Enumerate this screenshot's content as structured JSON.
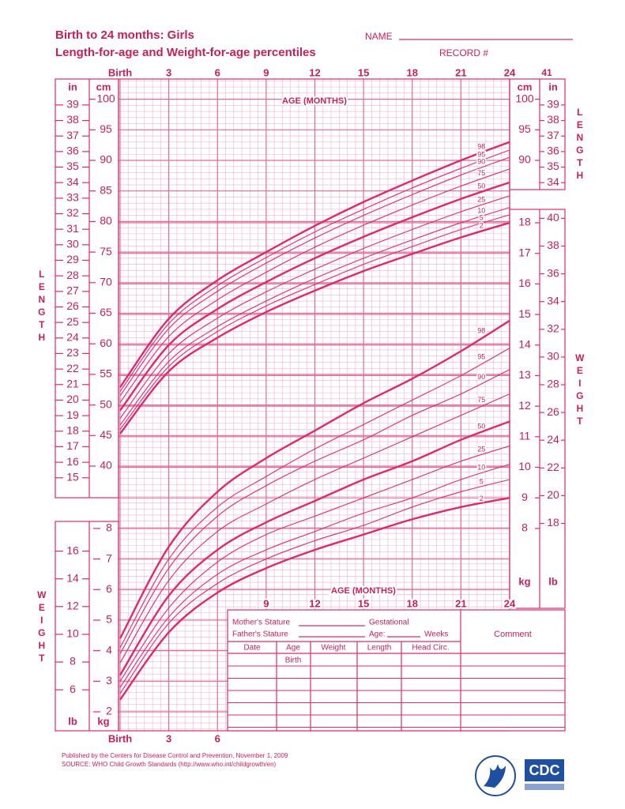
{
  "header": {
    "title": "Birth to 24 months: Girls",
    "subtitle": "Length-for-age and Weight-for-age percentiles",
    "name_label": "NAME",
    "record_label": "RECORD #",
    "corner_label": "41"
  },
  "chart_data": [
    {
      "type": "line",
      "x_label": "AGE (MONTHS)",
      "y_label": "LENGTH",
      "y_unit": "cm",
      "y2_unit": "in",
      "x": [
        0,
        3,
        6,
        9,
        12,
        15,
        18,
        21,
        24
      ],
      "xlim": [
        0,
        24
      ],
      "xticks": [
        {
          "value": 0,
          "label": "Birth"
        },
        3,
        6,
        9,
        12,
        15,
        18,
        21,
        24
      ],
      "ylim": [
        40,
        100
      ],
      "yticks": [
        40,
        45,
        50,
        55,
        60,
        65,
        70,
        75,
        80,
        85,
        90,
        95,
        100
      ],
      "yticks_right": [
        90,
        95,
        100
      ],
      "y2lim": [
        15.75,
        39.37
      ],
      "y2ticks": [
        15,
        16,
        17,
        18,
        19,
        20,
        21,
        22,
        23,
        24,
        25,
        26,
        27,
        28,
        29,
        30,
        31,
        32,
        33,
        34,
        35,
        36,
        37,
        38,
        39
      ],
      "y2ticks_right": [
        34,
        35,
        36,
        37,
        38,
        39
      ],
      "series": [
        {
          "name": "98",
          "color": "#dc2a72",
          "bold": true,
          "values": [
            52.9,
            64.1,
            70.4,
            75.0,
            79.3,
            83.2,
            86.7,
            90.0,
            93.0
          ]
        },
        {
          "name": "95",
          "color": "#dc2a72",
          "values": [
            52.2,
            63.3,
            69.5,
            74.1,
            78.3,
            82.0,
            85.5,
            88.7,
            91.7
          ]
        },
        {
          "name": "90",
          "color": "#dc2a72",
          "values": [
            51.5,
            62.5,
            68.6,
            73.2,
            77.3,
            81.0,
            84.4,
            87.6,
            90.5
          ]
        },
        {
          "name": "75",
          "color": "#dc2a72",
          "values": [
            50.4,
            61.2,
            67.2,
            71.7,
            75.8,
            79.4,
            82.7,
            85.8,
            88.6
          ]
        },
        {
          "name": "50",
          "color": "#dc2a72",
          "bold": true,
          "values": [
            49.1,
            59.8,
            65.7,
            70.1,
            74.0,
            77.5,
            80.7,
            83.7,
            86.4
          ]
        },
        {
          "name": "25",
          "color": "#dc2a72",
          "values": [
            47.8,
            58.4,
            64.2,
            68.5,
            72.2,
            75.6,
            78.7,
            81.6,
            84.2
          ]
        },
        {
          "name": "10",
          "color": "#dc2a72",
          "values": [
            46.7,
            57.1,
            62.8,
            67.0,
            70.7,
            74.0,
            77.0,
            79.8,
            82.3
          ]
        },
        {
          "name": "5",
          "color": "#dc2a72",
          "values": [
            46.0,
            56.3,
            62.0,
            66.2,
            69.7,
            73.0,
            75.9,
            78.7,
            81.1
          ]
        },
        {
          "name": "2",
          "color": "#dc2a72",
          "bold": true,
          "values": [
            45.3,
            55.5,
            61.0,
            65.2,
            68.7,
            71.9,
            74.7,
            77.4,
            79.8
          ]
        }
      ]
    },
    {
      "type": "line",
      "x_label": "AGE (MONTHS)",
      "y_label": "WEIGHT",
      "y_unit": "kg",
      "y2_unit": "lb",
      "x": [
        0,
        3,
        6,
        9,
        12,
        15,
        18,
        21,
        24
      ],
      "xlim": [
        0,
        24
      ],
      "xticks": [
        {
          "value": 0,
          "label": "Birth"
        },
        3,
        6,
        9,
        12,
        15,
        18,
        21,
        24
      ],
      "ylim": [
        2,
        18
      ],
      "yticks": [
        2,
        3,
        4,
        5,
        6,
        7,
        8
      ],
      "yticks_right": [
        8,
        9,
        10,
        11,
        12,
        13,
        14,
        15,
        16,
        17,
        18
      ],
      "y2lim": [
        4.41,
        39.68
      ],
      "y2ticks": [
        6,
        8,
        10,
        12,
        14,
        16
      ],
      "y2ticks_right": [
        18,
        20,
        22,
        24,
        26,
        28,
        30,
        32,
        34,
        36,
        38,
        40
      ],
      "series": [
        {
          "name": "98",
          "color": "#dc2a72",
          "bold": true,
          "values": [
            4.4,
            7.4,
            9.2,
            10.3,
            11.2,
            12.1,
            12.9,
            13.8,
            14.8
          ]
        },
        {
          "name": "95",
          "color": "#dc2a72",
          "values": [
            4.1,
            7.0,
            8.7,
            9.7,
            10.6,
            11.4,
            12.2,
            13.0,
            13.9
          ]
        },
        {
          "name": "90",
          "color": "#dc2a72",
          "values": [
            3.9,
            6.7,
            8.4,
            9.4,
            10.2,
            10.9,
            11.7,
            12.4,
            13.2
          ]
        },
        {
          "name": "75",
          "color": "#dc2a72",
          "values": [
            3.6,
            6.3,
            7.9,
            8.8,
            9.6,
            10.3,
            11.0,
            11.7,
            12.4
          ]
        },
        {
          "name": "50",
          "color": "#dc2a72",
          "bold": true,
          "values": [
            3.2,
            5.8,
            7.3,
            8.2,
            8.9,
            9.6,
            10.2,
            10.9,
            11.5
          ]
        },
        {
          "name": "25",
          "color": "#dc2a72",
          "values": [
            3.0,
            5.4,
            6.9,
            7.8,
            8.4,
            9.0,
            9.6,
            10.2,
            10.7
          ]
        },
        {
          "name": "10",
          "color": "#dc2a72",
          "values": [
            2.8,
            5.1,
            6.5,
            7.3,
            7.9,
            8.5,
            9.0,
            9.6,
            10.1
          ]
        },
        {
          "name": "5",
          "color": "#dc2a72",
          "values": [
            2.6,
            4.9,
            6.2,
            7.0,
            7.6,
            8.1,
            8.7,
            9.2,
            9.6
          ]
        },
        {
          "name": "2",
          "color": "#dc2a72",
          "bold": true,
          "values": [
            2.4,
            4.6,
            5.9,
            6.7,
            7.3,
            7.8,
            8.3,
            8.7,
            9.0
          ]
        }
      ]
    }
  ],
  "form": {
    "mothers_stature": "Mother's Stature",
    "fathers_stature": "Father's Stature",
    "gestational": "Gestational",
    "age": "Age:",
    "weeks": "Weeks",
    "comment": "Comment",
    "columns": [
      "Date",
      "Age",
      "Weight",
      "Length",
      "Head Circ."
    ],
    "first_age": "Birth"
  },
  "footer": {
    "published": "Published by the Centers for Disease Control and Prevention, November 1, 2009",
    "source": "SOURCE:  WHO Child Growth Standards (http://www.who.int/childgrowth/en)",
    "logo_text": "CDC"
  }
}
